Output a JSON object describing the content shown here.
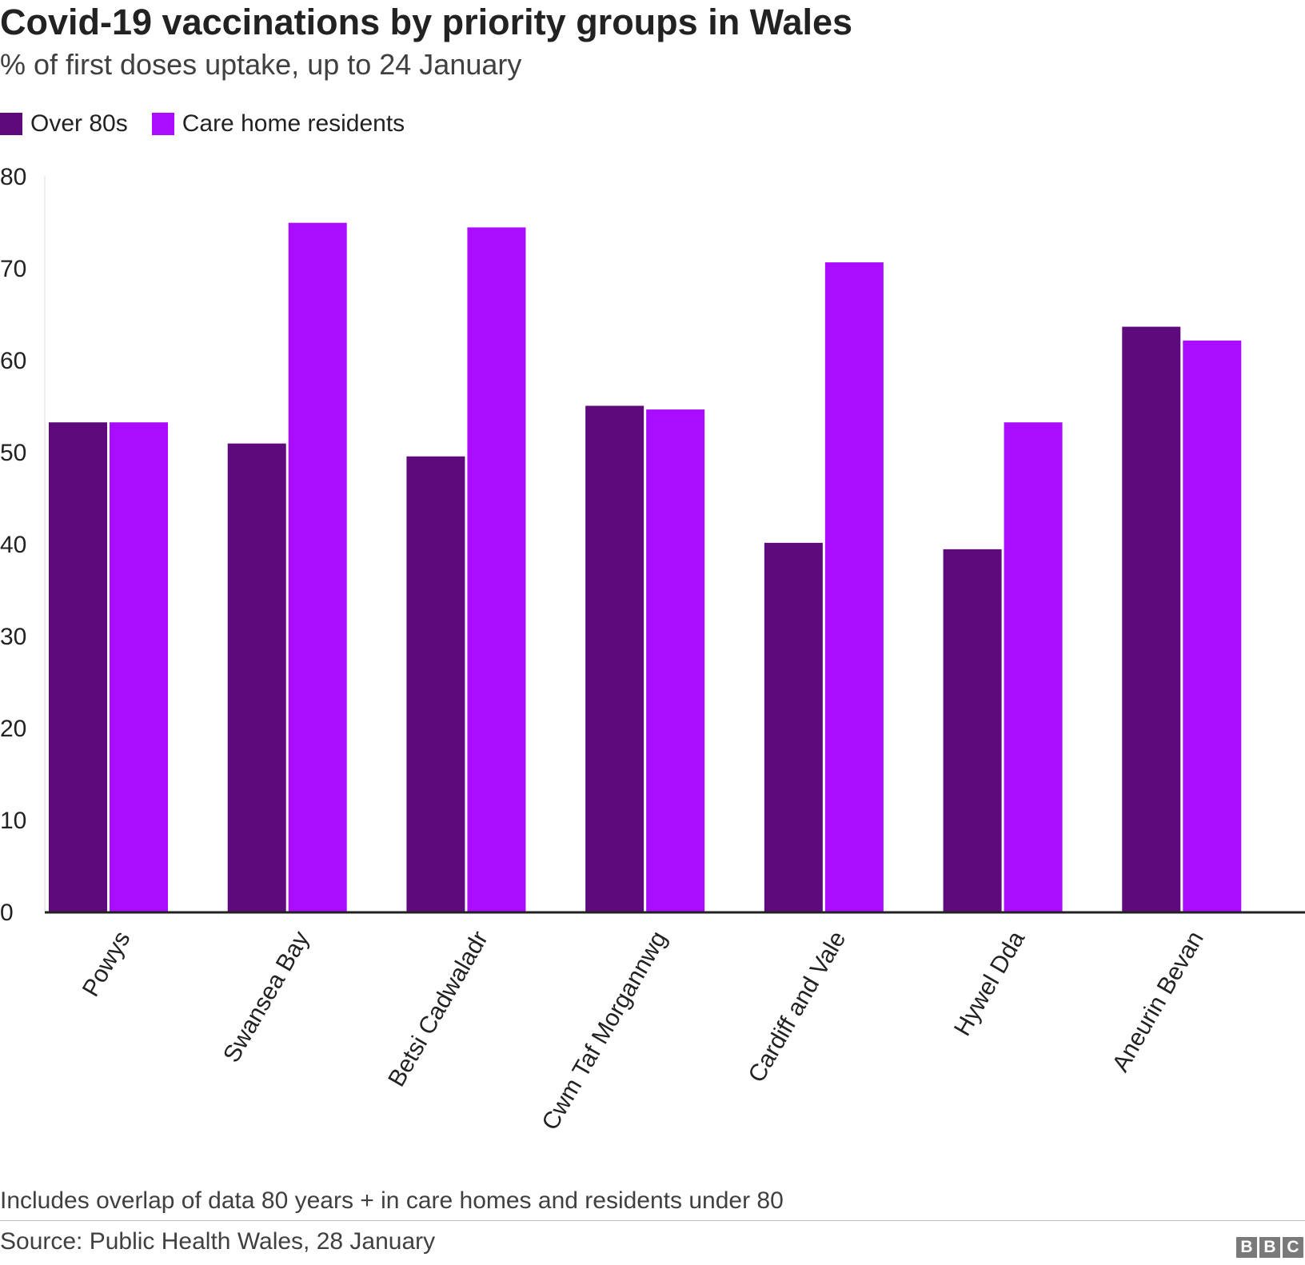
{
  "title": "Covid-19 vaccinations by priority groups in Wales",
  "subtitle": "% of first doses uptake, up to 24 January",
  "legend": [
    {
      "label": "Over 80s",
      "color": "#5e0a7c"
    },
    {
      "label": "Care home residents",
      "color": "#aa0cff"
    }
  ],
  "footnote": "Includes overlap of data 80 years + in care homes and residents under 80",
  "source": "Source: Public Health Wales, 28 January",
  "logo": {
    "letters": [
      "B",
      "B",
      "C"
    ]
  },
  "chart_data": {
    "type": "bar",
    "title": "Covid-19 vaccinations by priority groups in Wales",
    "subtitle": "% of first doses uptake, up to 24 January",
    "xlabel": "",
    "ylabel": "",
    "ylim": [
      0,
      80
    ],
    "yticks": [
      0,
      10,
      20,
      30,
      40,
      50,
      60,
      70,
      80
    ],
    "grid": false,
    "legend_position": "top-left",
    "categories": [
      "Powys",
      "Swansea Bay",
      "Betsi Cadwaladr",
      "Cwm Taf Morgannwg",
      "Cardiff and Vale",
      "Hywel Dda",
      "Aneurin Bevan"
    ],
    "series": [
      {
        "name": "Over 80s",
        "color": "#5e0a7c",
        "values": [
          53.2,
          50.9,
          49.5,
          55.0,
          40.1,
          39.4,
          63.6
        ]
      },
      {
        "name": "Care home residents",
        "color": "#aa0cff",
        "values": [
          53.2,
          74.9,
          74.4,
          54.6,
          70.6,
          53.2,
          62.1
        ]
      }
    ]
  }
}
